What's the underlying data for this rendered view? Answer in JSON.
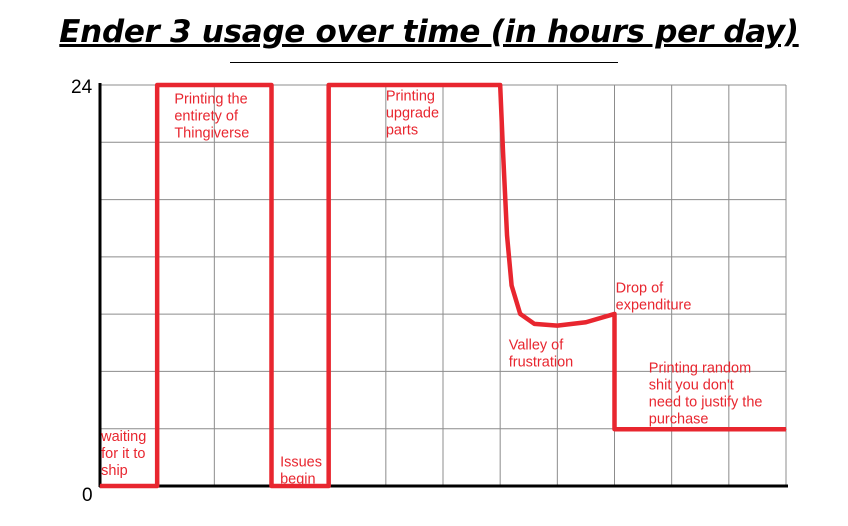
{
  "chart_data": {
    "type": "line",
    "title": "Ender 3 usage over time (in hours per day)",
    "xlabel": "",
    "ylabel": "",
    "ylim": [
      0,
      24
    ],
    "y_ticks": [
      "0",
      "24"
    ],
    "grid": true,
    "series": [
      {
        "color": "#e8262f",
        "points": [
          {
            "x": 0.0,
            "y": 0
          },
          {
            "x": 1.0,
            "y": 0
          },
          {
            "x": 1.0,
            "y": 24
          },
          {
            "x": 3.0,
            "y": 24
          },
          {
            "x": 3.0,
            "y": 0
          },
          {
            "x": 4.0,
            "y": 0
          },
          {
            "x": 4.0,
            "y": 24
          },
          {
            "x": 7.0,
            "y": 24
          },
          {
            "x": 7.05,
            "y": 20
          },
          {
            "x": 7.12,
            "y": 15
          },
          {
            "x": 7.2,
            "y": 12
          },
          {
            "x": 7.35,
            "y": 10.3
          },
          {
            "x": 7.6,
            "y": 9.7
          },
          {
            "x": 8.0,
            "y": 9.6
          },
          {
            "x": 8.5,
            "y": 9.8
          },
          {
            "x": 9.0,
            "y": 10.3
          },
          {
            "x": 9.0,
            "y": 3.4
          },
          {
            "x": 12.0,
            "y": 3.4
          }
        ]
      }
    ],
    "annotations": [
      {
        "lines": [
          "waiting",
          "for it to",
          "ship"
        ],
        "x": 0.02,
        "y": 3.4
      },
      {
        "lines": [
          "Printing the",
          "entirety of",
          "Thingiverse"
        ],
        "x": 1.3,
        "y": 23.6
      },
      {
        "lines": [
          "Issues",
          "begin"
        ],
        "x": 3.15,
        "y": 1.9
      },
      {
        "lines": [
          "Printing",
          "upgrade",
          "parts"
        ],
        "x": 5.0,
        "y": 23.8
      },
      {
        "lines": [
          "Valley of",
          "frustration"
        ],
        "x": 7.15,
        "y": 8.9
      },
      {
        "lines": [
          "Drop of",
          "expenditure"
        ],
        "x": 9.02,
        "y": 12.3
      },
      {
        "lines": [
          "Printing random",
          "shit you don't",
          "need to justify the",
          "purchase"
        ],
        "x": 9.6,
        "y": 7.5
      }
    ]
  }
}
